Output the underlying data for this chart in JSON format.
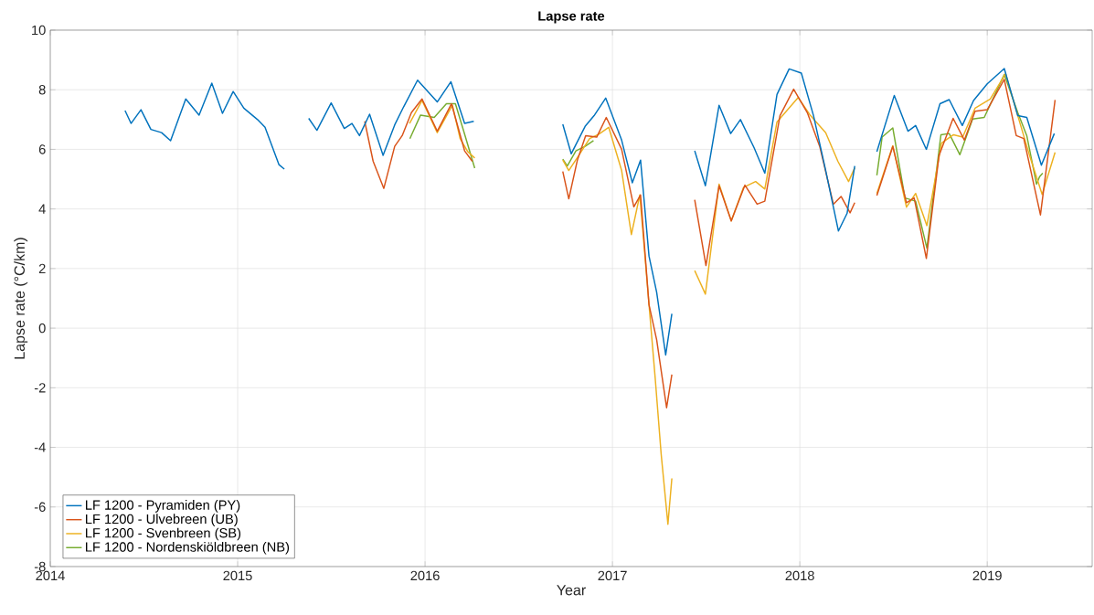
{
  "chart_data": {
    "type": "line",
    "title": "Lapse rate",
    "xlabel": "Year",
    "ylabel": "Lapse rate (°C/km)",
    "xlim": [
      2014,
      2019.56
    ],
    "xticks": [
      2014,
      2015,
      2016,
      2017,
      2018,
      2019
    ],
    "ylim": [
      -8,
      10
    ],
    "yticks": [
      -8,
      -6,
      -4,
      -2,
      0,
      2,
      4,
      6,
      8,
      10
    ],
    "grid": true,
    "legend": "bottom left",
    "series": [
      {
        "name": "LF 1200 - Pyramiden (PY)",
        "color": "#0072bd",
        "x": [
          2014.399,
          2014.431,
          2014.484,
          2014.537,
          2014.594,
          2014.642,
          2014.723,
          2014.794,
          2014.862,
          2014.919,
          2014.976,
          2015.033,
          2015.106,
          2015.146,
          2015.22,
          2015.249,
          2015.31,
          2015.379,
          2015.423,
          2015.499,
          2015.569,
          2015.61,
          2015.65,
          2015.704,
          2015.776,
          2015.838,
          2015.886,
          2015.96,
          2016.065,
          2016.138,
          2016.211,
          2016.26,
          2016.5,
          2016.735,
          2016.78,
          2016.854,
          2016.902,
          2016.964,
          2017.049,
          2017.106,
          2017.15,
          2017.195,
          2017.236,
          2017.284,
          2017.317,
          2017.38,
          2017.439,
          2017.496,
          2017.569,
          2017.631,
          2017.683,
          2017.756,
          2017.813,
          2017.878,
          2017.943,
          2018.008,
          2018.073,
          2018.138,
          2018.206,
          2018.252,
          2018.293,
          2018.35,
          2018.411,
          2018.504,
          2018.577,
          2018.618,
          2018.675,
          2018.748,
          2018.797,
          2018.867,
          2018.927,
          2019.0,
          2019.091,
          2019.163,
          2019.211,
          2019.289,
          2019.358
        ],
        "values": [
          7.3,
          6.87,
          7.33,
          6.67,
          6.56,
          6.29,
          7.69,
          7.15,
          8.22,
          7.21,
          7.94,
          7.38,
          7.0,
          6.74,
          5.49,
          5.34,
          null,
          7.04,
          6.64,
          7.56,
          6.7,
          6.87,
          6.46,
          7.18,
          5.8,
          6.82,
          7.43,
          8.32,
          7.59,
          8.27,
          6.87,
          6.94,
          null,
          6.84,
          5.85,
          6.77,
          7.13,
          7.72,
          6.31,
          4.88,
          5.64,
          2.42,
          1.2,
          -0.9,
          0.48,
          null,
          5.95,
          4.78,
          7.48,
          6.53,
          7.0,
          6.05,
          5.2,
          7.84,
          8.7,
          8.56,
          7.13,
          5.29,
          3.26,
          3.85,
          5.44,
          null,
          5.92,
          7.81,
          6.61,
          6.8,
          6.0,
          7.53,
          7.67,
          6.8,
          7.64,
          8.2,
          8.71,
          7.13,
          7.07,
          5.47,
          6.53
        ]
      },
      {
        "name": "LF 1200 - Ulvebreen (UB)",
        "color": "#d95319",
        "x": [
          2015.678,
          2015.723,
          2015.78,
          2015.838,
          2015.878,
          2015.927,
          2015.984,
          2016.065,
          2016.141,
          2016.211,
          2016.252,
          2016.5,
          2016.735,
          2016.767,
          2016.813,
          2016.857,
          2016.916,
          2016.967,
          2017.049,
          2017.114,
          2017.15,
          2017.195,
          2017.236,
          2017.289,
          2017.317,
          2017.38,
          2017.439,
          2017.499,
          2017.569,
          2017.634,
          2017.707,
          2017.772,
          2017.813,
          2017.894,
          2017.967,
          2018.04,
          2018.106,
          2018.179,
          2018.22,
          2018.268,
          2018.293,
          2018.35,
          2018.411,
          2018.496,
          2018.569,
          2018.61,
          2018.675,
          2018.743,
          2018.818,
          2018.878,
          2018.935,
          2019.0,
          2019.091,
          2019.155,
          2019.195,
          2019.284,
          2019.362
        ],
        "values": [
          6.94,
          5.6,
          4.69,
          6.1,
          6.46,
          7.23,
          7.69,
          6.61,
          7.53,
          5.95,
          5.6,
          null,
          5.26,
          4.34,
          5.64,
          6.46,
          6.41,
          7.07,
          6.0,
          4.07,
          4.47,
          0.79,
          -0.39,
          -2.67,
          -1.56,
          null,
          4.31,
          2.1,
          4.78,
          3.6,
          4.8,
          4.16,
          4.26,
          7.13,
          8.02,
          7.23,
          6.1,
          4.16,
          4.42,
          3.87,
          4.21,
          null,
          4.45,
          6.1,
          4.21,
          4.37,
          2.34,
          5.8,
          7.04,
          6.31,
          7.28,
          7.33,
          8.35,
          6.46,
          6.36,
          3.8,
          7.66
        ]
      },
      {
        "name": "LF 1200 - Svenbreen (SB)",
        "color": "#edb120",
        "x": [
          2015.917,
          2015.984,
          2016.065,
          2016.146,
          2016.187,
          2016.228,
          2016.265,
          2016.5,
          2016.735,
          2016.767,
          2016.821,
          2016.878,
          2016.927,
          2016.98,
          2017.049,
          2017.101,
          2017.146,
          2017.187,
          2017.228,
          2017.26,
          2017.296,
          2017.317,
          2017.38,
          2017.439,
          2017.496,
          2017.569,
          2017.634,
          2017.699,
          2017.764,
          2017.813,
          2017.878,
          2017.991,
          2018.057,
          2018.138,
          2018.203,
          2018.26,
          2018.293,
          2018.35,
          2018.411,
          2018.496,
          2018.569,
          2018.618,
          2018.678,
          2018.756,
          2018.82,
          2018.869,
          2018.935,
          2019.016,
          2019.098,
          2019.163,
          2019.228,
          2019.293,
          2019.362
        ],
        "values": [
          6.87,
          7.64,
          6.56,
          7.48,
          6.36,
          5.92,
          5.71,
          null,
          5.64,
          5.29,
          5.8,
          6.36,
          6.51,
          6.74,
          5.29,
          3.14,
          4.47,
          1.4,
          -1.67,
          -4.23,
          -6.58,
          -5.04,
          null,
          1.93,
          1.14,
          4.83,
          3.6,
          4.72,
          4.92,
          4.67,
          6.92,
          7.74,
          7.13,
          6.56,
          5.6,
          4.92,
          5.38,
          null,
          4.52,
          6.12,
          4.06,
          4.52,
          3.44,
          6.21,
          6.49,
          6.41,
          7.38,
          7.69,
          8.54,
          7.13,
          5.75,
          4.49,
          5.9
        ]
      },
      {
        "name": "LF 1200 - Nordenskiöldbreen (NB)",
        "color": "#77ac30",
        "x": [
          2015.919,
          2015.976,
          2016.049,
          2016.114,
          2016.162,
          2016.211,
          2016.265,
          2016.5,
          2016.735,
          2016.759,
          2016.805,
          2016.854,
          2016.899,
          2017.6,
          2018.411,
          2018.439,
          2018.496,
          2018.561,
          2018.618,
          2018.678,
          2018.753,
          2018.797,
          2018.854,
          2018.922,
          2018.984,
          2019.091,
          2019.163,
          2019.211,
          2019.263,
          2019.279,
          2019.296
        ],
        "values": [
          6.36,
          7.15,
          7.07,
          7.53,
          7.53,
          6.51,
          5.37,
          null,
          5.67,
          5.44,
          5.95,
          6.1,
          6.29,
          null,
          5.13,
          6.41,
          6.72,
          4.37,
          4.26,
          2.68,
          6.49,
          6.53,
          5.82,
          7.02,
          7.07,
          8.51,
          7.23,
          6.46,
          4.83,
          5.08,
          5.2
        ]
      }
    ]
  }
}
